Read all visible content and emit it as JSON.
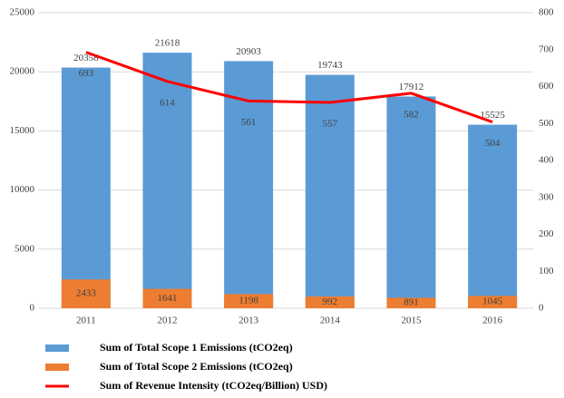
{
  "chart_data": {
    "type": "bar",
    "categories": [
      "2011",
      "2012",
      "2013",
      "2014",
      "2015",
      "2016"
    ],
    "series": [
      {
        "name": "Sum of Total Scope 1 Emissions (tCO2eq)",
        "type": "bar",
        "color": "#5b9bd5",
        "values": [
          20358,
          21618,
          20903,
          19743,
          17912,
          15525
        ]
      },
      {
        "name": "Sum of Total Scope 2 Emissions (tCO2eq)",
        "type": "bar",
        "color": "#ed7d31",
        "values": [
          2433,
          1641,
          1198,
          992,
          891,
          1045
        ]
      },
      {
        "name": "Sum of Revenue Intensity (tCO2eq/Billion) USD)",
        "type": "line",
        "axis": "y2",
        "color": "#ff0000",
        "values": [
          693,
          614,
          561,
          557,
          582,
          504
        ]
      }
    ],
    "ylim": [
      0,
      25000
    ],
    "yticks": [
      0,
      5000,
      10000,
      15000,
      20000,
      25000
    ],
    "y2lim": [
      0,
      800
    ],
    "y2ticks": [
      0,
      100,
      200,
      300,
      400,
      500,
      600,
      700,
      800
    ],
    "grid": true
  }
}
